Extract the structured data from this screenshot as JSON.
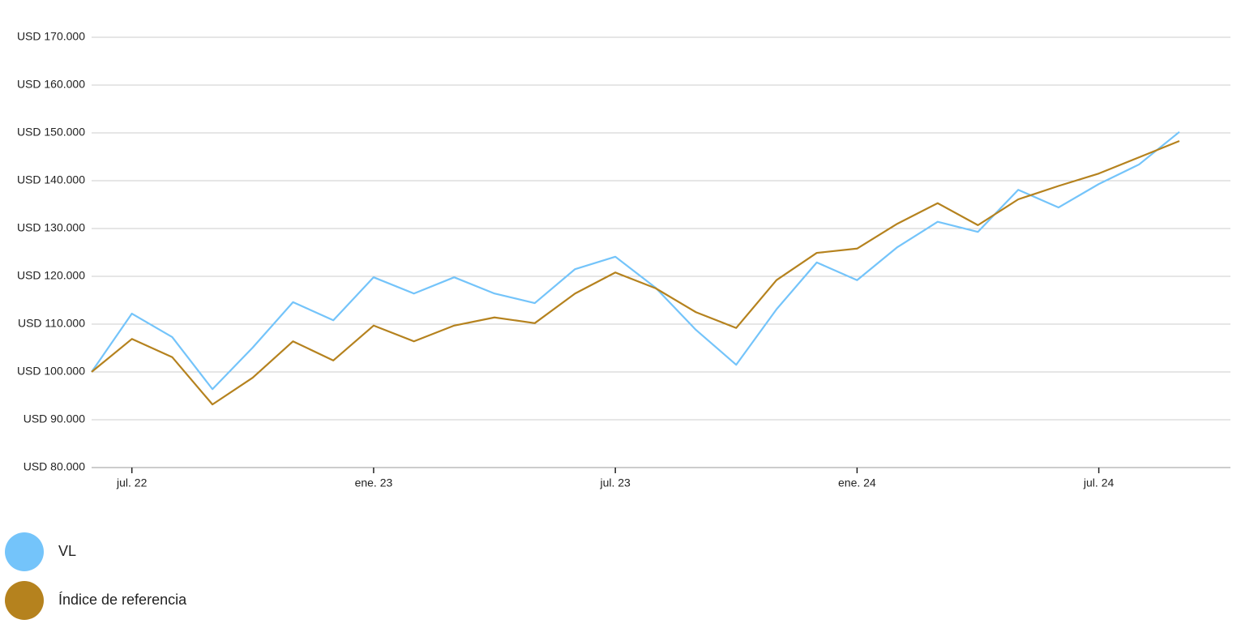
{
  "chart_data": {
    "type": "line",
    "categories": [
      null,
      "jul. 22",
      null,
      null,
      null,
      null,
      null,
      "ene. 23",
      null,
      null,
      null,
      null,
      null,
      "jul. 23",
      null,
      null,
      null,
      null,
      null,
      "ene. 24",
      null,
      null,
      null,
      null,
      null,
      "jul. 24",
      null,
      null
    ],
    "series": [
      {
        "name": "VL",
        "color": "#74c4fa",
        "values": [
          100000,
          112200,
          107300,
          96400,
          105100,
          114600,
          110800,
          119800,
          116400,
          119800,
          116400,
          114400,
          121500,
          124100,
          117600,
          108800,
          101500,
          113100,
          122900,
          119200,
          126100,
          131400,
          129300,
          138100,
          134400,
          139300,
          143400,
          150200
        ]
      },
      {
        "name": "Índice de referencia",
        "color": "#b5821e",
        "values": [
          100000,
          106900,
          103100,
          93200,
          98800,
          106400,
          102400,
          109700,
          106400,
          109700,
          111400,
          110200,
          116400,
          120800,
          117500,
          112500,
          109200,
          119200,
          124900,
          125800,
          131000,
          135300,
          130700,
          136100,
          138900,
          141500,
          144900,
          148300
        ]
      }
    ],
    "ylim": [
      80000,
      170000
    ],
    "yticks": [
      {
        "value": 80000,
        "label": "USD 80.000"
      },
      {
        "value": 90000,
        "label": "USD 90.000"
      },
      {
        "value": 100000,
        "label": "USD 100.000"
      },
      {
        "value": 110000,
        "label": "USD 110.000"
      },
      {
        "value": 120000,
        "label": "USD 120.000"
      },
      {
        "value": 130000,
        "label": "USD 130.000"
      },
      {
        "value": 140000,
        "label": "USD 140.000"
      },
      {
        "value": 150000,
        "label": "USD 150.000"
      },
      {
        "value": 160000,
        "label": "USD 160.000"
      },
      {
        "value": 170000,
        "label": "USD 170.000"
      }
    ],
    "grid": true
  }
}
